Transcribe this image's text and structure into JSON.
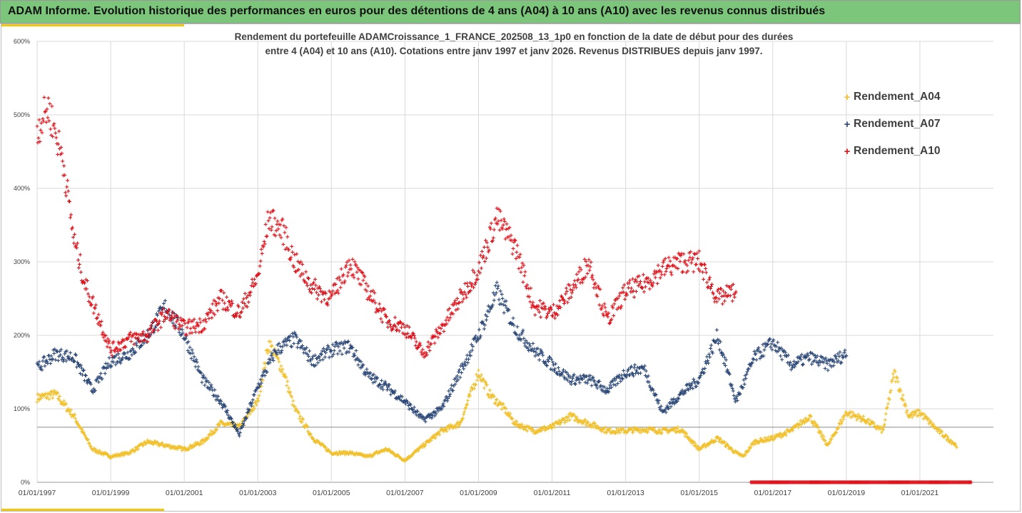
{
  "banner": {
    "title": "ADAM Informe. Evolution historique des performances en euros pour des détentions de 4 ans (A04) à 10 ans (A10) avec les revenus connus distribués"
  },
  "chart_data": {
    "type": "scatter",
    "title_lines": [
      "Rendement du portefeuille ADAMCroissance_1_FRANCE_202508_13_1p0  en fonction de la date de début pour des durées",
      "entre 4 (A04) et 10 ans (A10). Cotations entre janv 1997 et janv 2026. Revenus DISTRIBUES depuis janv 1997."
    ],
    "xlabel": "",
    "ylabel": "",
    "x_ticks": [
      "01/01/1997",
      "01/01/1999",
      "01/01/2001",
      "01/01/2003",
      "01/01/2005",
      "01/01/2007",
      "01/01/2009",
      "01/01/2011",
      "01/01/2013",
      "01/01/2015",
      "01/01/2017",
      "01/01/2019",
      "01/01/2021"
    ],
    "x_range": [
      "01/01/1997",
      "01/01/2023"
    ],
    "y_ticks": [
      "0%",
      "100%",
      "200%",
      "300%",
      "400%",
      "500%",
      "600%"
    ],
    "ylim": [
      0,
      600
    ],
    "grid": "horizontal",
    "legend_position": "right",
    "reference_line": 75,
    "marker": "+",
    "series": [
      {
        "name": "Rendement_A04",
        "color": "#f2c12e",
        "x": [
          1997.0,
          1997.5,
          1998.0,
          1998.5,
          1999.0,
          1999.5,
          2000.0,
          2000.5,
          2001.0,
          2001.5,
          2002.0,
          2002.5,
          2003.0,
          2003.3,
          2003.7,
          2004.0,
          2004.5,
          2005.0,
          2005.5,
          2006.0,
          2006.5,
          2007.0,
          2007.5,
          2008.0,
          2008.5,
          2009.0,
          2009.3,
          2009.7,
          2010.0,
          2010.5,
          2011.0,
          2011.5,
          2012.0,
          2012.5,
          2013.0,
          2013.5,
          2014.0,
          2014.5,
          2015.0,
          2015.5,
          2016.0,
          2016.2,
          2016.5,
          2017.0,
          2017.5,
          2018.0,
          2018.5,
          2019.0,
          2019.5,
          2020.0,
          2020.3,
          2020.7,
          2021.0,
          2021.5,
          2022.0
        ],
        "y": [
          115,
          120,
          90,
          45,
          35,
          40,
          55,
          50,
          45,
          55,
          80,
          75,
          110,
          190,
          150,
          100,
          60,
          40,
          40,
          35,
          45,
          30,
          50,
          70,
          80,
          150,
          120,
          100,
          80,
          70,
          75,
          90,
          80,
          70,
          70,
          72,
          70,
          72,
          45,
          60,
          40,
          35,
          55,
          60,
          70,
          90,
          50,
          95,
          85,
          70,
          150,
          90,
          95,
          70,
          50
        ]
      },
      {
        "name": "Rendement_A07",
        "color": "#2e4a78",
        "x": [
          1997.0,
          1997.5,
          1998.0,
          1998.5,
          1999.0,
          1999.5,
          2000.0,
          2000.5,
          2001.0,
          2001.5,
          2002.0,
          2002.5,
          2003.0,
          2003.5,
          2004.0,
          2004.5,
          2005.0,
          2005.5,
          2006.0,
          2006.5,
          2007.0,
          2007.5,
          2008.0,
          2008.5,
          2009.0,
          2009.5,
          2010.0,
          2010.5,
          2011.0,
          2011.5,
          2012.0,
          2012.5,
          2013.0,
          2013.5,
          2014.0,
          2014.5,
          2015.0,
          2015.5,
          2016.0,
          2016.5,
          2017.0,
          2017.5,
          2018.0,
          2018.5,
          2019.0
        ],
        "y": [
          155,
          175,
          170,
          125,
          165,
          175,
          200,
          240,
          200,
          140,
          110,
          65,
          130,
          180,
          195,
          165,
          180,
          185,
          145,
          130,
          110,
          85,
          100,
          150,
          200,
          260,
          210,
          180,
          160,
          140,
          140,
          125,
          150,
          155,
          95,
          120,
          140,
          200,
          110,
          170,
          190,
          160,
          170,
          160,
          175
        ]
      },
      {
        "name": "Rendement_A10",
        "color": "#e0141c",
        "x": [
          1997.0,
          1997.3,
          1997.7,
          1998.0,
          1998.3,
          1998.7,
          1999.0,
          1999.5,
          2000.0,
          2000.5,
          2001.0,
          2001.5,
          2002.0,
          2002.5,
          2003.0,
          2003.3,
          2003.7,
          2004.0,
          2004.5,
          2005.0,
          2005.5,
          2006.0,
          2006.5,
          2007.0,
          2007.5,
          2008.0,
          2008.5,
          2009.0,
          2009.5,
          2010.0,
          2010.5,
          2011.0,
          2011.5,
          2012.0,
          2012.5,
          2013.0,
          2013.5,
          2014.0,
          2014.5,
          2015.0,
          2015.5,
          2016.0
        ],
        "y": [
          480,
          510,
          440,
          330,
          270,
          220,
          180,
          195,
          200,
          230,
          210,
          215,
          250,
          230,
          280,
          360,
          340,
          300,
          265,
          250,
          300,
          260,
          220,
          210,
          175,
          210,
          250,
          290,
          360,
          320,
          240,
          230,
          260,
          300,
          220,
          260,
          270,
          290,
          300,
          300,
          250,
          260
        ]
      }
    ]
  }
}
